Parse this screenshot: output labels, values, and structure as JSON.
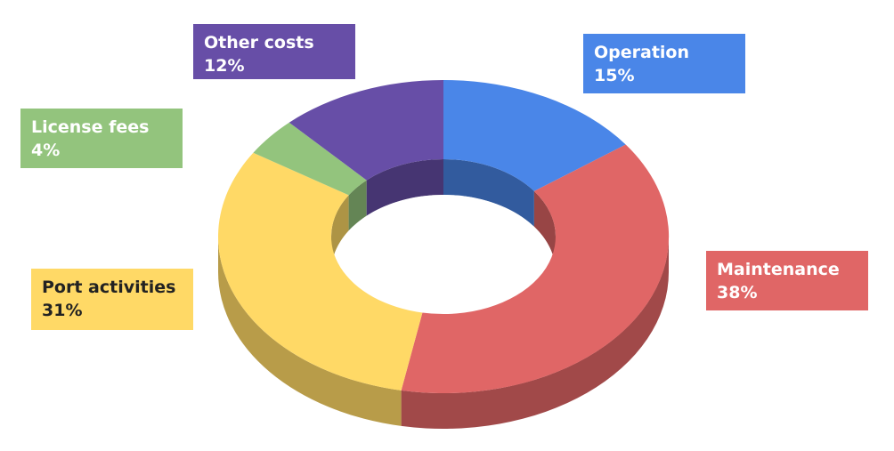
{
  "chart_data": {
    "type": "pie",
    "variant": "3d-donut",
    "title": "",
    "slices": [
      {
        "label": "Operation",
        "value": 15,
        "value_label": "15%",
        "color": "#4A86E8",
        "text_color": "#ffffff"
      },
      {
        "label": "Maintenance",
        "value": 38,
        "value_label": "38%",
        "color": "#E06666",
        "text_color": "#ffffff"
      },
      {
        "label": "Port activities",
        "value": 31,
        "value_label": "31%",
        "color": "#FFD966",
        "text_color": "#222222"
      },
      {
        "label": "License fees",
        "value": 4,
        "value_label": "4%",
        "color": "#93C47D",
        "text_color": "#ffffff"
      },
      {
        "label": "Other costs",
        "value": 12,
        "value_label": "12%",
        "color": "#674EA7",
        "text_color": "#ffffff"
      }
    ],
    "start_angle": "12 o'clock",
    "direction": "clockwise",
    "legend": "callout labels"
  }
}
